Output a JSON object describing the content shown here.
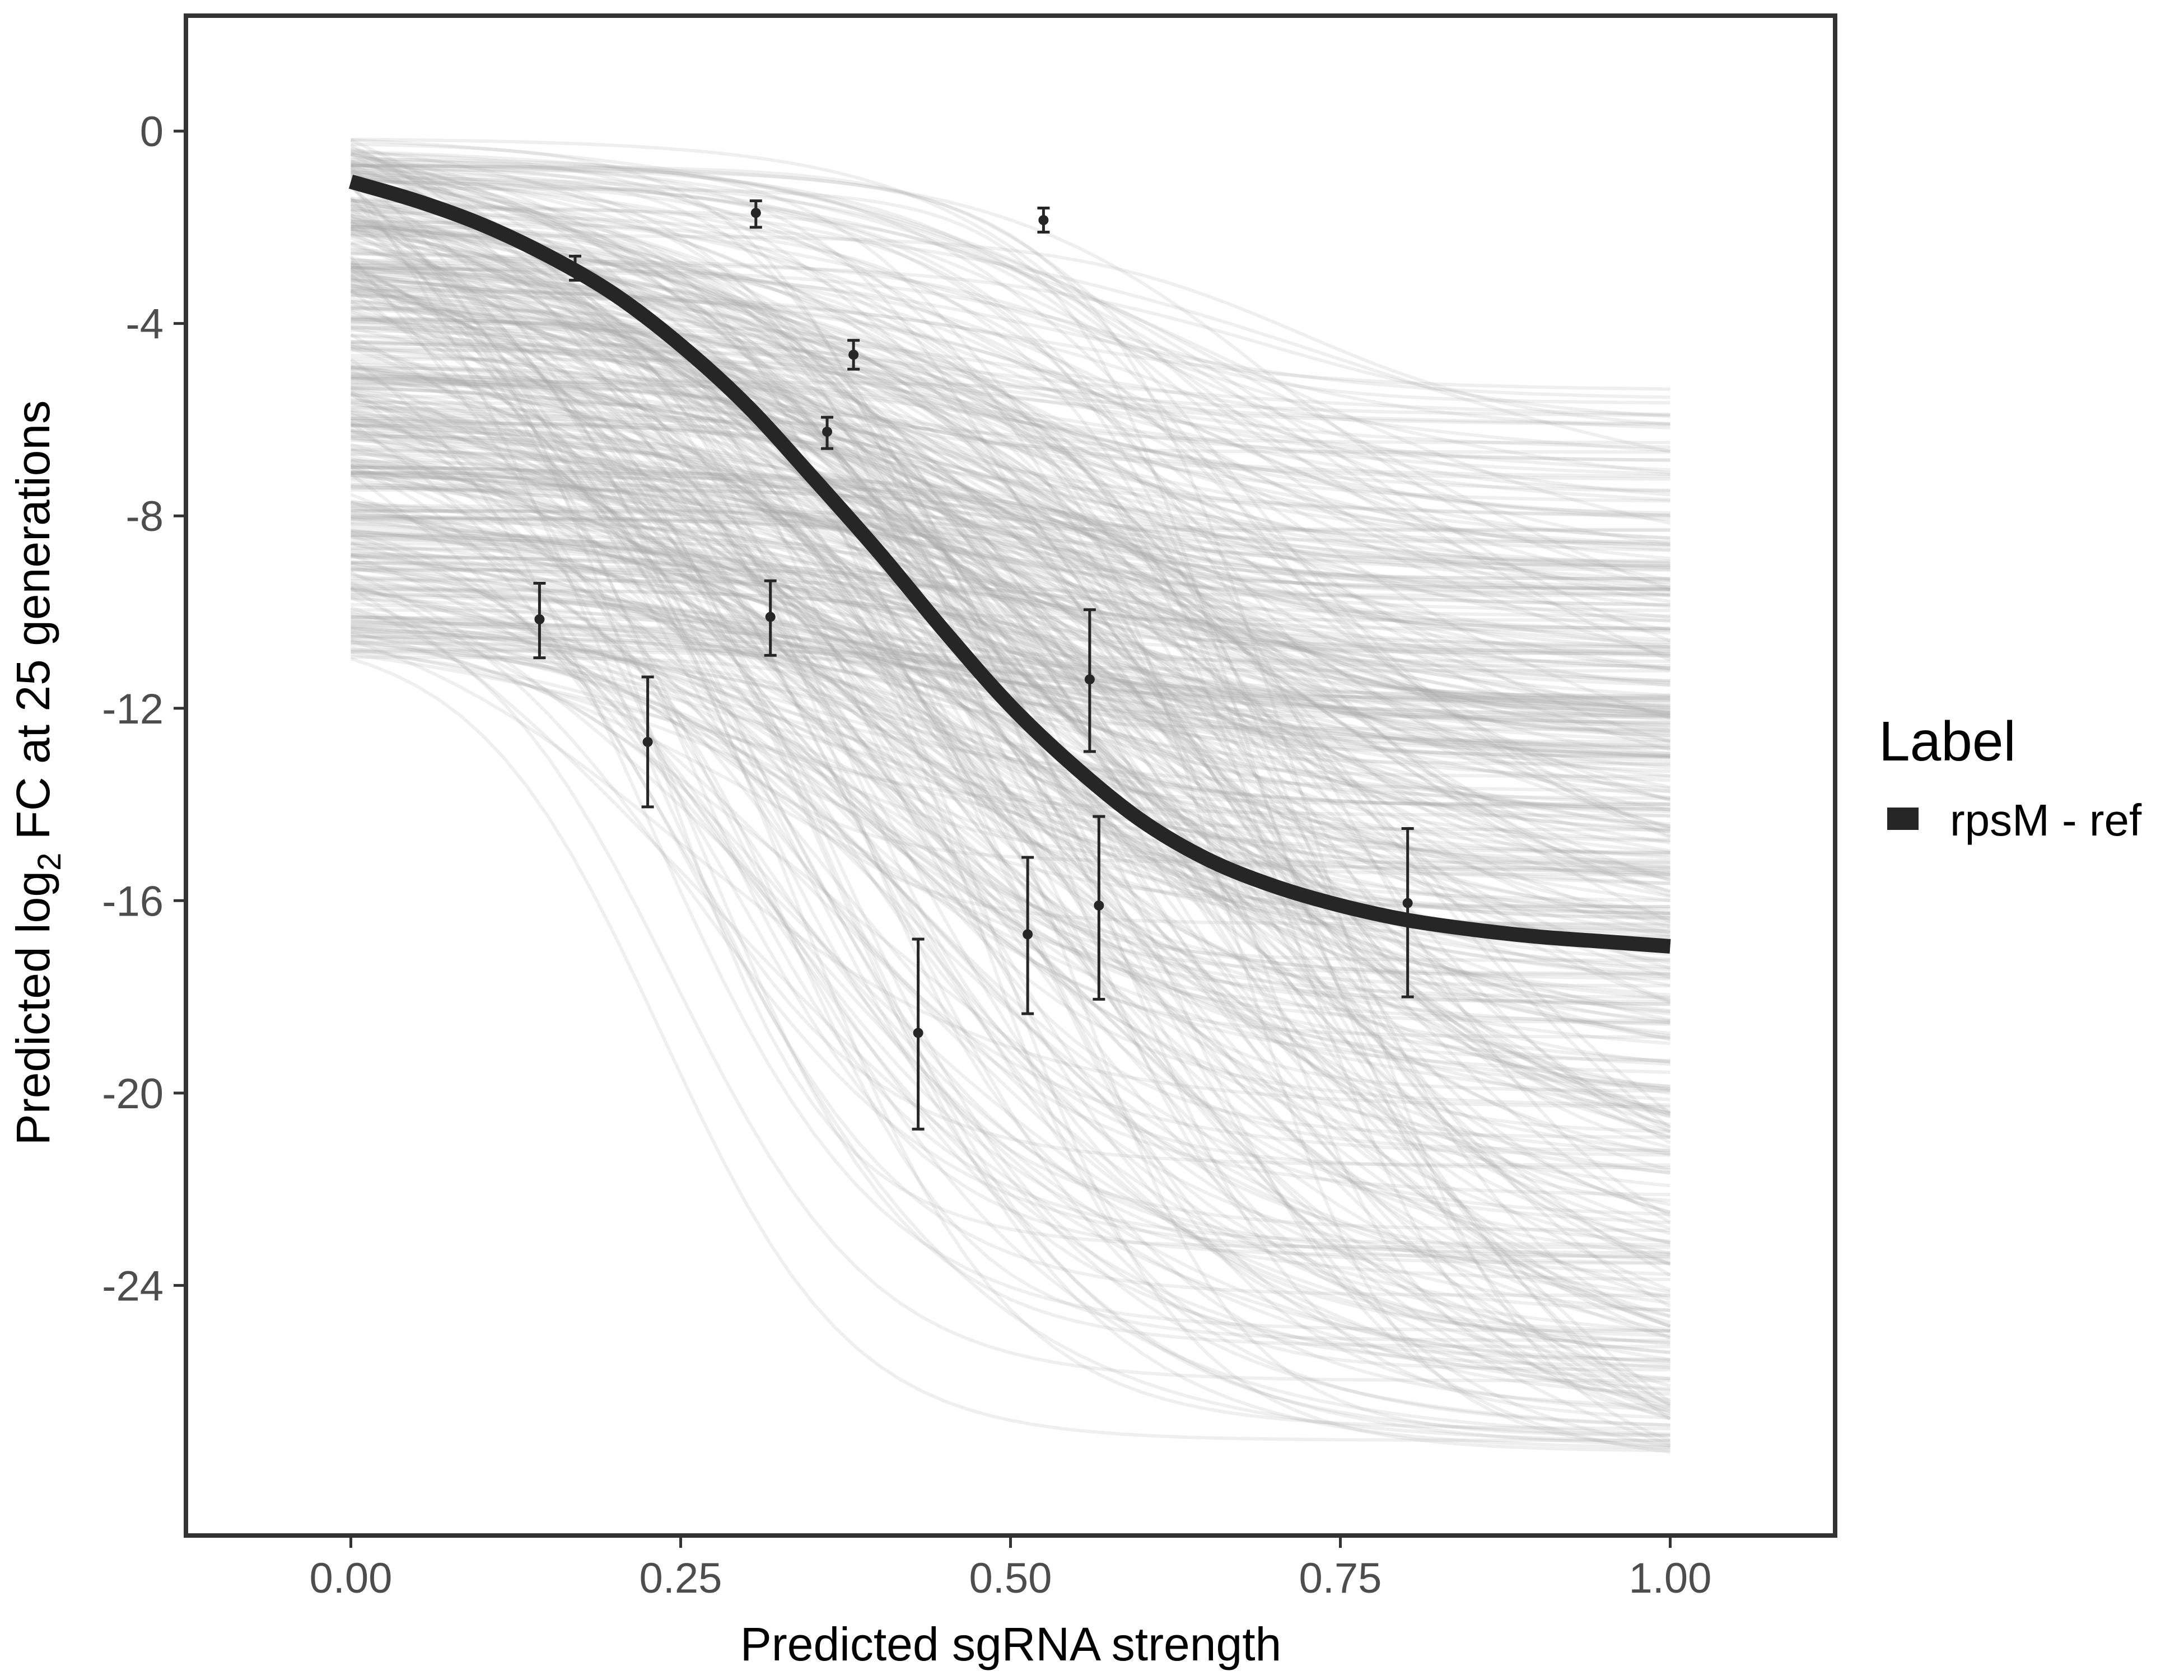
{
  "chart_data": {
    "type": "line",
    "xlabel": "Predicted sgRNA strength",
    "ylabel_parts": {
      "pre": "Predicted  log",
      "sub": "2",
      "post": " FC at 25 generations"
    },
    "xlim": [
      -0.125,
      1.125
    ],
    "ylim": [
      -29.2,
      2.4
    ],
    "x_ticks": [
      0,
      0.25,
      0.5,
      0.75,
      1
    ],
    "x_tick_labels": [
      "0.00",
      "0.25",
      "0.50",
      "0.75",
      "1.00"
    ],
    "y_ticks": [
      0,
      -4,
      -8,
      -12,
      -16,
      -20,
      -24
    ],
    "y_tick_labels": [
      "0",
      "-4",
      "-8",
      "-12",
      "-16",
      "-20",
      "-24"
    ],
    "grid": false,
    "legend": {
      "title": "Label",
      "position": "right",
      "entries": [
        {
          "label": "rpsM - ref",
          "color": "#262626"
        }
      ]
    },
    "series": [
      {
        "name": "rpsM - ref",
        "type": "fit-line",
        "color": "#262626",
        "x": [
          0,
          0.05,
          0.1,
          0.15,
          0.2,
          0.25,
          0.3,
          0.35,
          0.4,
          0.45,
          0.5,
          0.55,
          0.6,
          0.65,
          0.7,
          0.75,
          0.8,
          0.85,
          0.9,
          0.95,
          1.0
        ],
        "y": [
          -1.05,
          -1.45,
          -1.95,
          -2.6,
          -3.4,
          -4.45,
          -5.7,
          -7.2,
          -8.75,
          -10.4,
          -11.95,
          -13.25,
          -14.35,
          -15.15,
          -15.7,
          -16.1,
          -16.4,
          -16.6,
          -16.75,
          -16.85,
          -16.95
        ]
      },
      {
        "type": "errorbar",
        "color": "#262626",
        "points": [
          {
            "x": 0.143,
            "y": -10.15,
            "ymin": -10.95,
            "ymax": -9.4
          },
          {
            "x": 0.17,
            "y": -2.85,
            "ymin": -3.1,
            "ymax": -2.6
          },
          {
            "x": 0.225,
            "y": -12.7,
            "ymin": -14.05,
            "ymax": -11.35
          },
          {
            "x": 0.307,
            "y": -1.7,
            "ymin": -2.0,
            "ymax": -1.45
          },
          {
            "x": 0.318,
            "y": -10.1,
            "ymin": -10.9,
            "ymax": -9.35
          },
          {
            "x": 0.361,
            "y": -6.25,
            "ymin": -6.6,
            "ymax": -5.95
          },
          {
            "x": 0.381,
            "y": -4.65,
            "ymin": -4.95,
            "ymax": -4.35
          },
          {
            "x": 0.43,
            "y": -18.75,
            "ymin": -20.75,
            "ymax": -16.8
          },
          {
            "x": 0.513,
            "y": -16.7,
            "ymin": -18.35,
            "ymax": -15.1
          },
          {
            "x": 0.525,
            "y": -1.85,
            "ymin": -2.1,
            "ymax": -1.6
          },
          {
            "x": 0.56,
            "y": -11.4,
            "ymin": -12.9,
            "ymax": -9.95
          },
          {
            "x": 0.567,
            "y": -16.1,
            "ymin": -18.05,
            "ymax": -14.25
          },
          {
            "x": 0.801,
            "y": -16.05,
            "ymin": -18.0,
            "ymax": -14.5
          }
        ]
      },
      {
        "type": "posterior-draws",
        "color": "#a6a6a6",
        "opacity": 0.18,
        "count": 450,
        "x_range": [
          0,
          1
        ],
        "note": "sigmoid curves y = a + (b - a)/(1 + exp(-(x - m)/s)), params sampled in ranges",
        "start_range": [
          -11.0,
          -0.15
        ],
        "end_range": [
          -27.5,
          -4.5
        ],
        "midpoint_range": [
          0.2,
          0.75
        ],
        "scale_range": [
          0.06,
          0.2
        ]
      }
    ]
  }
}
